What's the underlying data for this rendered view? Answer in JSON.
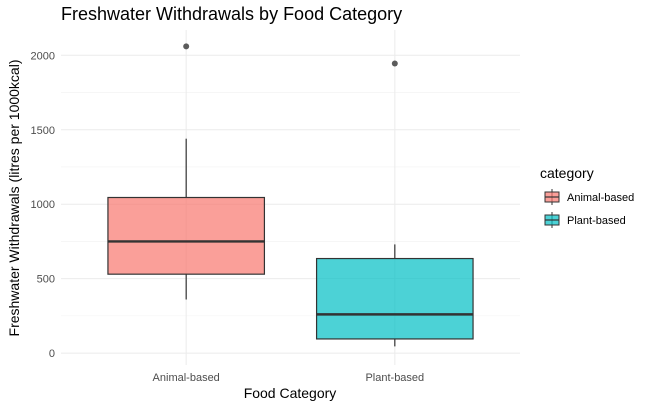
{
  "chart_data": {
    "type": "boxplot",
    "title": "Freshwater Withdrawals by Food Category",
    "xlabel": "Food Category",
    "ylabel": "Freshwater Withdrawals (litres per 1000kcal)",
    "ylim": [
      -80,
      2170
    ],
    "yticks": [
      0,
      500,
      1000,
      1500,
      2000
    ],
    "categories": [
      "Animal-based",
      "Plant-based"
    ],
    "grid": true,
    "legend": {
      "title": "category",
      "position": "right",
      "entries": [
        "Animal-based",
        "Plant-based"
      ]
    },
    "series": [
      {
        "name": "Animal-based",
        "color": "#F8766D",
        "whisker_low": 360,
        "q1": 530,
        "median": 750,
        "q3": 1045,
        "whisker_high": 1440,
        "outliers": [
          2060
        ]
      },
      {
        "name": "Plant-based",
        "color": "#00BFC4",
        "whisker_low": 45,
        "q1": 95,
        "median": 260,
        "q3": 635,
        "whisker_high": 730,
        "outliers": [
          1945
        ]
      }
    ]
  }
}
